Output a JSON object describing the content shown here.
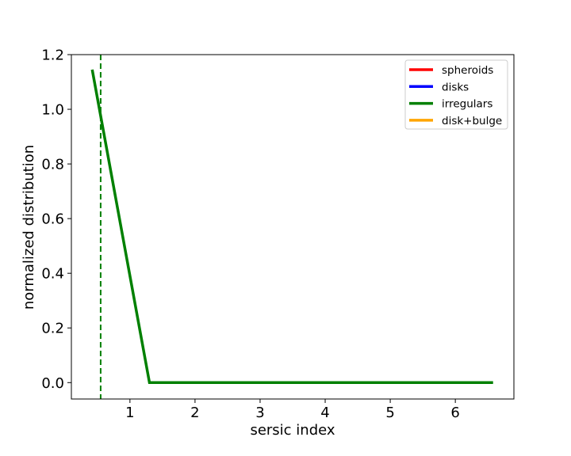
{
  "chart_data": {
    "type": "line",
    "xlabel": "sersic index",
    "ylabel": "normalized distribution",
    "xlim": [
      0.1,
      6.9
    ],
    "ylim": [
      -0.06,
      1.2
    ],
    "xticks": [
      1,
      2,
      3,
      4,
      5,
      6
    ],
    "yticks": [
      0.0,
      0.2,
      0.4,
      0.6,
      0.8,
      1.0,
      1.2
    ],
    "xtick_labels": [
      "1",
      "2",
      "3",
      "4",
      "5",
      "6"
    ],
    "ytick_labels": [
      "0.0",
      "0.2",
      "0.4",
      "0.6",
      "0.8",
      "1.0",
      "1.2"
    ],
    "legend_position": "top-right",
    "series": [
      {
        "name": "spheroids",
        "color": "#ff0000",
        "x": [],
        "y": []
      },
      {
        "name": "disks",
        "color": "#0000ff",
        "x": [],
        "y": []
      },
      {
        "name": "irregulars",
        "color": "#008000",
        "x": [
          0.42,
          1.3,
          6.58
        ],
        "y": [
          1.145,
          0.0,
          0.0
        ]
      },
      {
        "name": "disk+bulge",
        "color": "#ffa500",
        "x": [],
        "y": []
      }
    ],
    "vlines": [
      {
        "x": 0.55,
        "color": "#008000",
        "style": "dashed"
      }
    ]
  }
}
